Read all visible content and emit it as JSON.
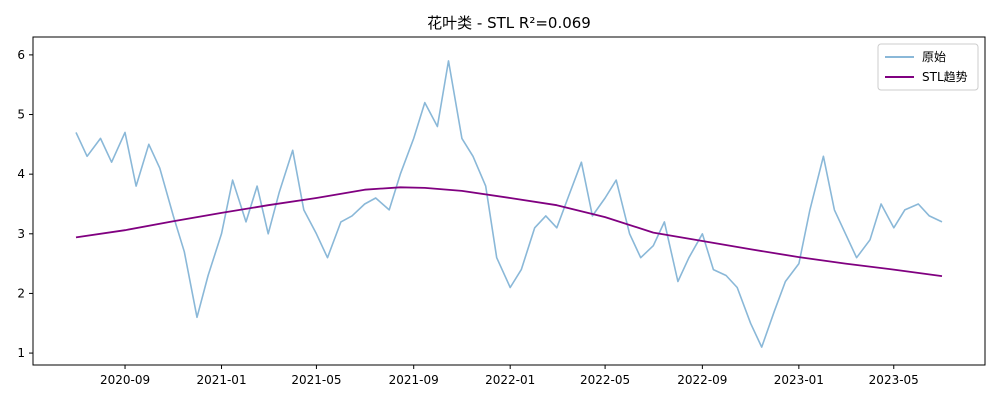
{
  "chart_data": {
    "type": "line",
    "title": "花叶类 - STL R²=0.069",
    "xlabel": "",
    "ylabel": "",
    "x_range": [
      "2020-07-01",
      "2023-07-01"
    ],
    "ylim": [
      0.8,
      6.3
    ],
    "x_ticks": [
      "2020-09",
      "2021-01",
      "2021-05",
      "2021-09",
      "2022-01",
      "2022-05",
      "2022-09",
      "2023-01",
      "2023-05"
    ],
    "y_ticks": [
      1,
      2,
      3,
      4,
      5,
      6
    ],
    "grid": false,
    "legend_position": "top-right",
    "series": [
      {
        "name": "原始",
        "color": "#8ab8d8",
        "points": [
          [
            "2020-07-01",
            4.7
          ],
          [
            "2020-07-15",
            4.3
          ],
          [
            "2020-08-01",
            4.6
          ],
          [
            "2020-08-15",
            4.2
          ],
          [
            "2020-09-01",
            4.7
          ],
          [
            "2020-09-15",
            3.8
          ],
          [
            "2020-10-01",
            4.5
          ],
          [
            "2020-10-15",
            4.1
          ],
          [
            "2020-11-01",
            3.3
          ],
          [
            "2020-11-15",
            2.7
          ],
          [
            "2020-12-01",
            1.6
          ],
          [
            "2020-12-15",
            2.3
          ],
          [
            "2021-01-01",
            3.0
          ],
          [
            "2021-01-15",
            3.9
          ],
          [
            "2021-02-01",
            3.2
          ],
          [
            "2021-02-15",
            3.8
          ],
          [
            "2021-03-01",
            3.0
          ],
          [
            "2021-03-15",
            3.7
          ],
          [
            "2021-04-01",
            4.4
          ],
          [
            "2021-04-15",
            3.4
          ],
          [
            "2021-05-01",
            3.0
          ],
          [
            "2021-05-15",
            2.6
          ],
          [
            "2021-06-01",
            3.2
          ],
          [
            "2021-06-15",
            3.3
          ],
          [
            "2021-07-01",
            3.5
          ],
          [
            "2021-07-15",
            3.6
          ],
          [
            "2021-08-01",
            3.4
          ],
          [
            "2021-08-15",
            4.0
          ],
          [
            "2021-09-01",
            4.6
          ],
          [
            "2021-09-15",
            5.2
          ],
          [
            "2021-10-01",
            4.8
          ],
          [
            "2021-10-15",
            5.9
          ],
          [
            "2021-11-01",
            4.6
          ],
          [
            "2021-11-15",
            4.3
          ],
          [
            "2021-12-01",
            3.8
          ],
          [
            "2021-12-15",
            2.6
          ],
          [
            "2022-01-01",
            2.1
          ],
          [
            "2022-01-15",
            2.4
          ],
          [
            "2022-02-01",
            3.1
          ],
          [
            "2022-02-15",
            3.3
          ],
          [
            "2022-03-01",
            3.1
          ],
          [
            "2022-03-15",
            3.6
          ],
          [
            "2022-04-01",
            4.2
          ],
          [
            "2022-04-15",
            3.3
          ],
          [
            "2022-05-01",
            3.6
          ],
          [
            "2022-05-15",
            3.9
          ],
          [
            "2022-06-01",
            3.0
          ],
          [
            "2022-06-15",
            2.6
          ],
          [
            "2022-07-01",
            2.8
          ],
          [
            "2022-07-15",
            3.2
          ],
          [
            "2022-08-01",
            2.2
          ],
          [
            "2022-08-15",
            2.6
          ],
          [
            "2022-09-01",
            3.0
          ],
          [
            "2022-09-15",
            2.4
          ],
          [
            "2022-10-01",
            2.3
          ],
          [
            "2022-10-15",
            2.1
          ],
          [
            "2022-11-01",
            1.5
          ],
          [
            "2022-11-15",
            1.1
          ],
          [
            "2022-12-01",
            1.7
          ],
          [
            "2022-12-15",
            2.2
          ],
          [
            "2023-01-01",
            2.5
          ],
          [
            "2023-01-15",
            3.4
          ],
          [
            "2023-02-01",
            4.3
          ],
          [
            "2023-02-15",
            3.4
          ],
          [
            "2023-03-01",
            3.0
          ],
          [
            "2023-03-15",
            2.6
          ],
          [
            "2023-04-01",
            2.9
          ],
          [
            "2023-04-15",
            3.5
          ],
          [
            "2023-05-01",
            3.1
          ],
          [
            "2023-05-15",
            3.4
          ],
          [
            "2023-06-01",
            3.5
          ],
          [
            "2023-06-15",
            3.3
          ],
          [
            "2023-07-01",
            3.2
          ]
        ]
      },
      {
        "name": "STL趋势",
        "color": "#800080",
        "points": [
          [
            "2020-07-01",
            2.94
          ],
          [
            "2020-09-01",
            3.06
          ],
          [
            "2020-11-01",
            3.21
          ],
          [
            "2021-01-01",
            3.35
          ],
          [
            "2021-03-01",
            3.48
          ],
          [
            "2021-05-01",
            3.6
          ],
          [
            "2021-07-01",
            3.74
          ],
          [
            "2021-08-15",
            3.78
          ],
          [
            "2021-09-15",
            3.77
          ],
          [
            "2021-11-01",
            3.72
          ],
          [
            "2022-01-01",
            3.6
          ],
          [
            "2022-03-01",
            3.48
          ],
          [
            "2022-05-01",
            3.28
          ],
          [
            "2022-07-01",
            3.02
          ],
          [
            "2022-09-01",
            2.88
          ],
          [
            "2022-11-01",
            2.74
          ],
          [
            "2023-01-01",
            2.61
          ],
          [
            "2023-03-01",
            2.5
          ],
          [
            "2023-05-01",
            2.4
          ],
          [
            "2023-07-01",
            2.29
          ]
        ]
      }
    ]
  }
}
